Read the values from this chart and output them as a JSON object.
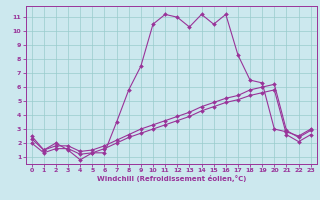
{
  "xlabel": "Windchill (Refroidissement éolien,°C)",
  "bg_color": "#cce8ee",
  "line_color": "#993399",
  "grid_color": "#99cccc",
  "xlim": [
    -0.5,
    23.5
  ],
  "ylim": [
    0.5,
    11.8
  ],
  "xticks": [
    0,
    1,
    2,
    3,
    4,
    5,
    6,
    7,
    8,
    9,
    10,
    11,
    12,
    13,
    14,
    15,
    16,
    17,
    18,
    19,
    20,
    21,
    22,
    23
  ],
  "yticks": [
    1,
    2,
    3,
    4,
    5,
    6,
    7,
    8,
    9,
    10,
    11
  ],
  "series1_x": [
    0,
    1,
    2,
    3,
    4,
    5,
    6,
    7,
    8,
    9,
    10,
    11,
    12,
    13,
    14,
    15,
    16,
    17,
    18,
    19,
    20,
    21,
    22,
    23
  ],
  "series1_y": [
    2.5,
    1.5,
    2.0,
    1.5,
    0.8,
    1.3,
    1.3,
    3.5,
    5.8,
    7.5,
    10.5,
    11.2,
    11.0,
    10.3,
    11.2,
    10.5,
    11.2,
    8.3,
    6.5,
    6.3,
    3.0,
    2.8,
    2.5,
    3.0
  ],
  "series2_x": [
    0,
    1,
    2,
    3,
    4,
    5,
    6,
    7,
    8,
    9,
    10,
    11,
    12,
    13,
    14,
    15,
    16,
    17,
    18,
    19,
    20,
    21,
    22,
    23
  ],
  "series2_y": [
    2.3,
    1.5,
    1.8,
    1.8,
    1.4,
    1.5,
    1.8,
    2.2,
    2.6,
    3.0,
    3.3,
    3.6,
    3.9,
    4.2,
    4.6,
    4.9,
    5.2,
    5.4,
    5.8,
    6.0,
    6.2,
    2.9,
    2.4,
    2.9
  ],
  "series3_x": [
    0,
    1,
    2,
    3,
    4,
    5,
    6,
    7,
    8,
    9,
    10,
    11,
    12,
    13,
    14,
    15,
    16,
    17,
    18,
    19,
    20,
    21,
    22,
    23
  ],
  "series3_y": [
    2.0,
    1.3,
    1.6,
    1.6,
    1.2,
    1.3,
    1.6,
    2.0,
    2.4,
    2.7,
    3.0,
    3.3,
    3.6,
    3.9,
    4.3,
    4.6,
    4.9,
    5.1,
    5.4,
    5.6,
    5.8,
    2.6,
    2.1,
    2.6
  ]
}
